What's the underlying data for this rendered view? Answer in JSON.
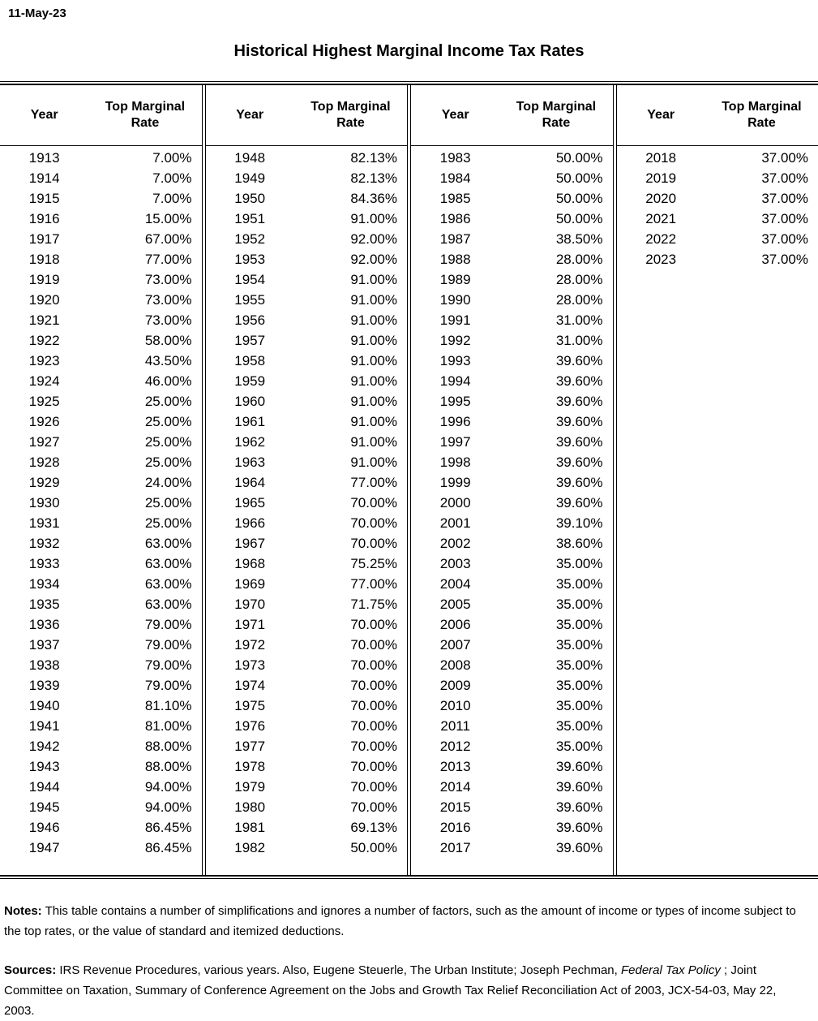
{
  "date": "11-May-23",
  "title": "Historical Highest Marginal Income Tax Rates",
  "table": {
    "headers": {
      "year": "Year",
      "rate": "Top Marginal Rate"
    },
    "groups": [
      {
        "rows": [
          {
            "year": "1913",
            "rate": "7.00%"
          },
          {
            "year": "1914",
            "rate": "7.00%"
          },
          {
            "year": "1915",
            "rate": "7.00%"
          },
          {
            "year": "1916",
            "rate": "15.00%"
          },
          {
            "year": "1917",
            "rate": "67.00%"
          },
          {
            "year": "1918",
            "rate": "77.00%"
          },
          {
            "year": "1919",
            "rate": "73.00%"
          },
          {
            "year": "1920",
            "rate": "73.00%"
          },
          {
            "year": "1921",
            "rate": "73.00%"
          },
          {
            "year": "1922",
            "rate": "58.00%"
          },
          {
            "year": "1923",
            "rate": "43.50%"
          },
          {
            "year": "1924",
            "rate": "46.00%"
          },
          {
            "year": "1925",
            "rate": "25.00%"
          },
          {
            "year": "1926",
            "rate": "25.00%"
          },
          {
            "year": "1927",
            "rate": "25.00%"
          },
          {
            "year": "1928",
            "rate": "25.00%"
          },
          {
            "year": "1929",
            "rate": "24.00%"
          },
          {
            "year": "1930",
            "rate": "25.00%"
          },
          {
            "year": "1931",
            "rate": "25.00%"
          },
          {
            "year": "1932",
            "rate": "63.00%"
          },
          {
            "year": "1933",
            "rate": "63.00%"
          },
          {
            "year": "1934",
            "rate": "63.00%"
          },
          {
            "year": "1935",
            "rate": "63.00%"
          },
          {
            "year": "1936",
            "rate": "79.00%"
          },
          {
            "year": "1937",
            "rate": "79.00%"
          },
          {
            "year": "1938",
            "rate": "79.00%"
          },
          {
            "year": "1939",
            "rate": "79.00%"
          },
          {
            "year": "1940",
            "rate": "81.10%"
          },
          {
            "year": "1941",
            "rate": "81.00%"
          },
          {
            "year": "1942",
            "rate": "88.00%"
          },
          {
            "year": "1943",
            "rate": "88.00%"
          },
          {
            "year": "1944",
            "rate": "94.00%"
          },
          {
            "year": "1945",
            "rate": "94.00%"
          },
          {
            "year": "1946",
            "rate": "86.45%"
          },
          {
            "year": "1947",
            "rate": "86.45%"
          }
        ]
      },
      {
        "rows": [
          {
            "year": "1948",
            "rate": "82.13%"
          },
          {
            "year": "1949",
            "rate": "82.13%"
          },
          {
            "year": "1950",
            "rate": "84.36%"
          },
          {
            "year": "1951",
            "rate": "91.00%"
          },
          {
            "year": "1952",
            "rate": "92.00%"
          },
          {
            "year": "1953",
            "rate": "92.00%"
          },
          {
            "year": "1954",
            "rate": "91.00%"
          },
          {
            "year": "1955",
            "rate": "91.00%"
          },
          {
            "year": "1956",
            "rate": "91.00%"
          },
          {
            "year": "1957",
            "rate": "91.00%"
          },
          {
            "year": "1958",
            "rate": "91.00%"
          },
          {
            "year": "1959",
            "rate": "91.00%"
          },
          {
            "year": "1960",
            "rate": "91.00%"
          },
          {
            "year": "1961",
            "rate": "91.00%"
          },
          {
            "year": "1962",
            "rate": "91.00%"
          },
          {
            "year": "1963",
            "rate": "91.00%"
          },
          {
            "year": "1964",
            "rate": "77.00%"
          },
          {
            "year": "1965",
            "rate": "70.00%"
          },
          {
            "year": "1966",
            "rate": "70.00%"
          },
          {
            "year": "1967",
            "rate": "70.00%"
          },
          {
            "year": "1968",
            "rate": "75.25%"
          },
          {
            "year": "1969",
            "rate": "77.00%"
          },
          {
            "year": "1970",
            "rate": "71.75%"
          },
          {
            "year": "1971",
            "rate": "70.00%"
          },
          {
            "year": "1972",
            "rate": "70.00%"
          },
          {
            "year": "1973",
            "rate": "70.00%"
          },
          {
            "year": "1974",
            "rate": "70.00%"
          },
          {
            "year": "1975",
            "rate": "70.00%"
          },
          {
            "year": "1976",
            "rate": "70.00%"
          },
          {
            "year": "1977",
            "rate": "70.00%"
          },
          {
            "year": "1978",
            "rate": "70.00%"
          },
          {
            "year": "1979",
            "rate": "70.00%"
          },
          {
            "year": "1980",
            "rate": "70.00%"
          },
          {
            "year": "1981",
            "rate": "69.13%"
          },
          {
            "year": "1982",
            "rate": "50.00%"
          }
        ]
      },
      {
        "rows": [
          {
            "year": "1983",
            "rate": "50.00%"
          },
          {
            "year": "1984",
            "rate": "50.00%"
          },
          {
            "year": "1985",
            "rate": "50.00%"
          },
          {
            "year": "1986",
            "rate": "50.00%"
          },
          {
            "year": "1987",
            "rate": "38.50%"
          },
          {
            "year": "1988",
            "rate": "28.00%"
          },
          {
            "year": "1989",
            "rate": "28.00%"
          },
          {
            "year": "1990",
            "rate": "28.00%"
          },
          {
            "year": "1991",
            "rate": "31.00%"
          },
          {
            "year": "1992",
            "rate": "31.00%"
          },
          {
            "year": "1993",
            "rate": "39.60%"
          },
          {
            "year": "1994",
            "rate": "39.60%"
          },
          {
            "year": "1995",
            "rate": "39.60%"
          },
          {
            "year": "1996",
            "rate": "39.60%"
          },
          {
            "year": "1997",
            "rate": "39.60%"
          },
          {
            "year": "1998",
            "rate": "39.60%"
          },
          {
            "year": "1999",
            "rate": "39.60%"
          },
          {
            "year": "2000",
            "rate": "39.60%"
          },
          {
            "year": "2001",
            "rate": "39.10%"
          },
          {
            "year": "2002",
            "rate": "38.60%"
          },
          {
            "year": "2003",
            "rate": "35.00%"
          },
          {
            "year": "2004",
            "rate": "35.00%"
          },
          {
            "year": "2005",
            "rate": "35.00%"
          },
          {
            "year": "2006",
            "rate": "35.00%"
          },
          {
            "year": "2007",
            "rate": "35.00%"
          },
          {
            "year": "2008",
            "rate": "35.00%"
          },
          {
            "year": "2009",
            "rate": "35.00%"
          },
          {
            "year": "2010",
            "rate": "35.00%"
          },
          {
            "year": "2011",
            "rate": "35.00%"
          },
          {
            "year": "2012",
            "rate": "35.00%"
          },
          {
            "year": "2013",
            "rate": "39.60%"
          },
          {
            "year": "2014",
            "rate": "39.60%"
          },
          {
            "year": "2015",
            "rate": "39.60%"
          },
          {
            "year": "2016",
            "rate": "39.60%"
          },
          {
            "year": "2017",
            "rate": "39.60%"
          }
        ]
      },
      {
        "rows": [
          {
            "year": "2018",
            "rate": "37.00%"
          },
          {
            "year": "2019",
            "rate": "37.00%"
          },
          {
            "year": "2020",
            "rate": "37.00%"
          },
          {
            "year": "2021",
            "rate": "37.00%"
          },
          {
            "year": "2022",
            "rate": "37.00%"
          },
          {
            "year": "2023",
            "rate": "37.00%"
          }
        ]
      }
    ]
  },
  "notes": {
    "segments": [
      {
        "t": "Notes:",
        "b": true
      },
      {
        "t": " This table contains a number of simplifications and ignores a number of factors, such as the amount of income or types of income subject to the top rates, or the value of standard and itemized deductions."
      }
    ]
  },
  "sources": {
    "segments": [
      {
        "t": "Sources:",
        "b": true
      },
      {
        "t": " IRS Revenue Procedures, various years. Also, Eugene Steuerle, The Urban Institute; Joseph Pechman, "
      },
      {
        "t": "Federal Tax Policy",
        "i": true
      },
      {
        "t": " ; Joint Committee on Taxation, Summary of Conference Agreement on the Jobs and Growth Tax Relief Reconciliation Act of 2003, JCX-54-03, May 22, 2003."
      }
    ]
  }
}
